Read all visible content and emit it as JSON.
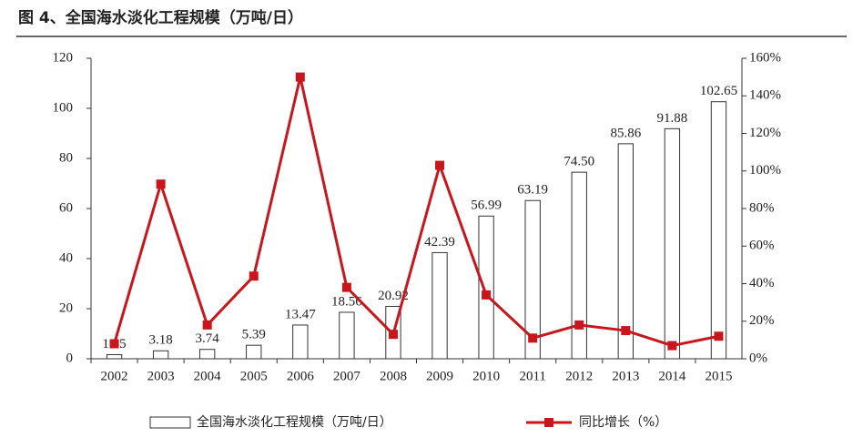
{
  "chart_data": {
    "type": "bar-line",
    "title": "图 4、全国海水淡化工程规模（万吨/日）",
    "categories": [
      "2002",
      "2003",
      "2004",
      "2005",
      "2006",
      "2007",
      "2008",
      "2009",
      "2010",
      "2011",
      "2012",
      "2013",
      "2014",
      "2015"
    ],
    "series": [
      {
        "name": "全国海水淡化工程规模（万吨/日）",
        "color": "#ffffff",
        "type": "bar",
        "values": [
          1.65,
          3.18,
          3.74,
          5.39,
          13.47,
          18.56,
          20.92,
          42.39,
          56.99,
          63.19,
          74.5,
          85.86,
          91.88,
          102.65
        ],
        "value_labels": [
          "1.65",
          "3.18",
          "3.74",
          "5.39",
          "13.47",
          "18.56",
          "20.92",
          "42.39",
          "56.99",
          "63.19",
          "74.50",
          "85.86",
          "91.88",
          "102.65"
        ]
      },
      {
        "name": "同比增长（%）",
        "color": "#c8161d",
        "type": "line",
        "axis": "y2",
        "values": [
          8,
          93,
          18,
          44,
          150,
          38,
          13,
          103,
          34,
          11,
          18,
          15,
          7,
          12
        ]
      }
    ],
    "ylim": [
      0,
      120
    ],
    "yticks": [
      0,
      20,
      40,
      60,
      80,
      100,
      120
    ],
    "y2lim": [
      0,
      160
    ],
    "y2ticks": [
      {
        "value": 0,
        "label": "0%"
      },
      {
        "value": 20,
        "label": "20%"
      },
      {
        "value": 40,
        "label": "40%"
      },
      {
        "value": 60,
        "label": "60%"
      },
      {
        "value": 80,
        "label": "80%"
      },
      {
        "value": 100,
        "label": "100%"
      },
      {
        "value": 120,
        "label": "120%"
      },
      {
        "value": 140,
        "label": "140%"
      },
      {
        "value": 160,
        "label": "160%"
      }
    ]
  }
}
